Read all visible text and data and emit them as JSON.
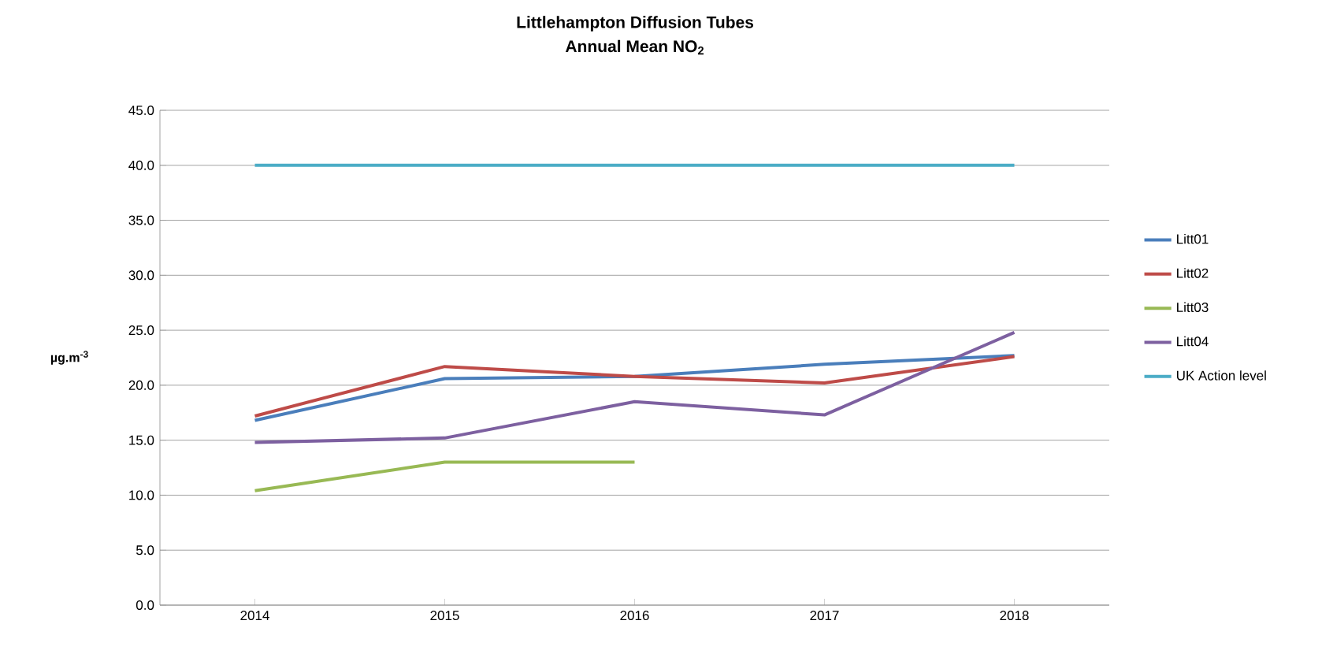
{
  "chart_data": {
    "type": "line",
    "title": "Littlehampton Diffusion Tubes",
    "subtitle": "Annual Mean NO$_{2}$",
    "ylabel": "µg.m$^{-3}$",
    "categories": [
      "2014",
      "2015",
      "2016",
      "2017",
      "2018"
    ],
    "series": [
      {
        "name": "Litt01",
        "color": "#4a7ebb",
        "values": [
          16.8,
          20.6,
          20.8,
          21.9,
          22.7
        ]
      },
      {
        "name": "Litt02",
        "color": "#be4b48",
        "values": [
          17.2,
          21.7,
          20.8,
          20.2,
          22.6
        ]
      },
      {
        "name": "Litt03",
        "color": "#98b954",
        "values": [
          10.4,
          13.0,
          13.0,
          null,
          null
        ]
      },
      {
        "name": "Litt04",
        "color": "#7d60a0",
        "values": [
          14.8,
          15.2,
          18.5,
          17.3,
          24.8
        ]
      },
      {
        "name": "UK Action level",
        "color": "#4bacc6",
        "values": [
          40,
          40,
          40,
          40,
          40
        ]
      }
    ],
    "ylim": [
      0,
      45
    ],
    "yticks": [
      {
        "value": 0,
        "label": "0.0"
      },
      {
        "value": 5,
        "label": "5.0"
      },
      {
        "value": 10,
        "label": "10.0"
      },
      {
        "value": 15,
        "label": "15.0"
      },
      {
        "value": 20,
        "label": "20.0"
      },
      {
        "value": 25,
        "label": "25.0"
      },
      {
        "value": 30,
        "label": "30.0"
      },
      {
        "value": 35,
        "label": "35.0"
      },
      {
        "value": 40,
        "label": "40.0"
      },
      {
        "value": 45,
        "label": "45.0"
      }
    ],
    "grid": "y",
    "legend": "right",
    "marker": "none",
    "line_style": "solid"
  }
}
